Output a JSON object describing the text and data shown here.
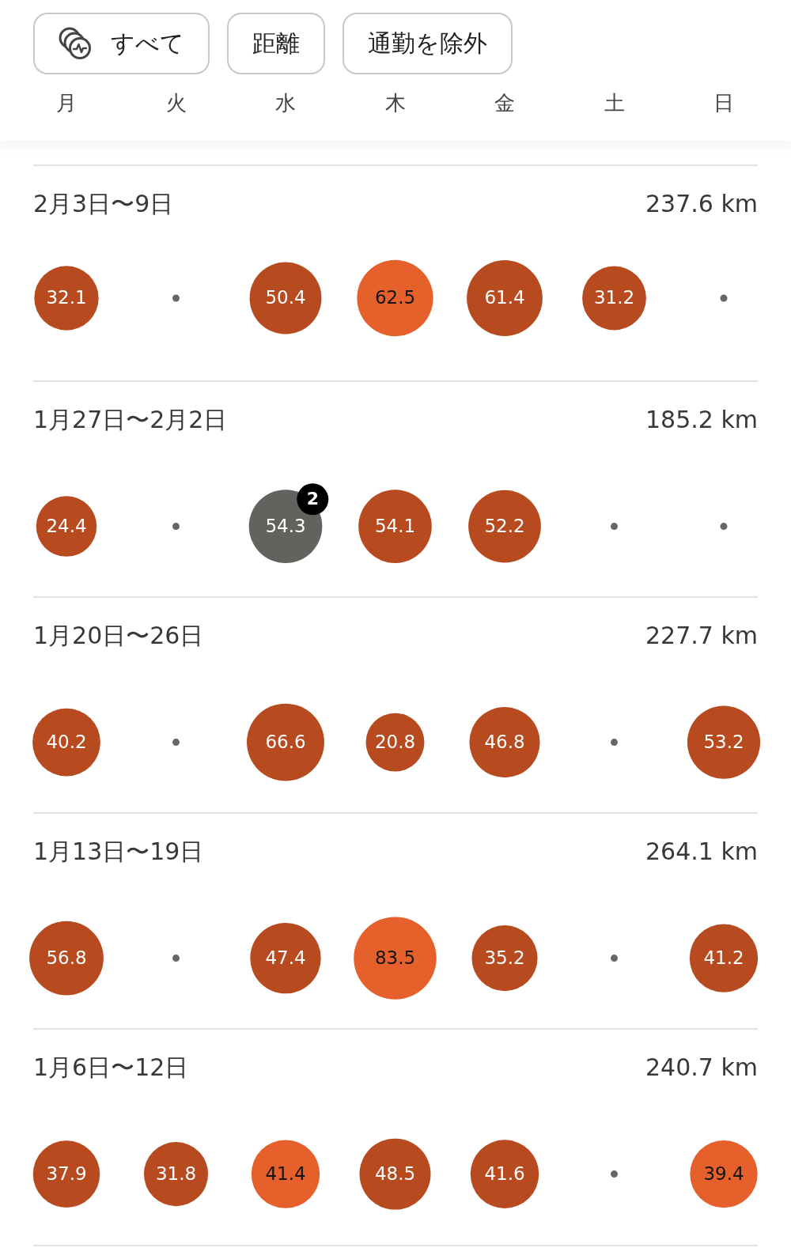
{
  "chart_data": [
    {
      "type": "other",
      "annotations": [
        "すべて",
        "距離",
        "通勤を除外"
      ]
    },
    {
      "type": "other",
      "title": "2月3日〜9日",
      "categories": [
        "月",
        "火",
        "水",
        "木",
        "金",
        "土",
        "日"
      ],
      "values": [
        32.1,
        null,
        50.4,
        62.5,
        61.4,
        31.2,
        null
      ],
      "colors": [
        "#b84a20",
        "#666666",
        "#b84a20",
        "#e5602a",
        "#b84a20",
        "#b84a20",
        "#666666"
      ],
      "data_labels": true,
      "annotations": [
        "237.6 km"
      ]
    },
    {
      "type": "other",
      "title": "1月27日〜2月2日",
      "values": [
        24.4,
        null,
        54.3,
        54.1,
        52.2,
        null,
        null
      ],
      "colors": [
        "#b84a20",
        "#666666",
        "#63625e",
        "#b84a20",
        "#b84a20",
        "#666666",
        "#666666"
      ],
      "data_labels": true,
      "annotations": [
        "185.2 km",
        {
          "text": "2",
          "x": "水"
        }
      ]
    },
    {
      "type": "other",
      "title": "1月20日〜26日",
      "values": [
        40.2,
        null,
        66.6,
        20.8,
        46.8,
        null,
        53.2
      ],
      "colors": [
        "#b84a20",
        "#666666",
        "#b84a20",
        "#b84a20",
        "#b84a20",
        "#666666",
        "#b84a20"
      ],
      "data_labels": true,
      "annotations": [
        "227.7 km"
      ]
    },
    {
      "type": "other",
      "title": "1月13日〜19日",
      "values": [
        56.8,
        null,
        47.4,
        83.5,
        35.2,
        null,
        41.2
      ],
      "colors": [
        "#b84a20",
        "#666666",
        "#b84a20",
        "#e5602a",
        "#b84a20",
        "#666666",
        "#b84a20"
      ],
      "data_labels": true,
      "annotations": [
        "264.1 km"
      ]
    },
    {
      "type": "other",
      "title": "1月6日〜12日",
      "values": [
        37.9,
        31.8,
        41.4,
        48.5,
        41.6,
        null,
        39.4
      ],
      "colors": [
        "#b84a20",
        "#b84a20",
        "#e5602a",
        "#b84a20",
        "#b84a20",
        "#666666",
        "#e5602a"
      ],
      "data_labels": true,
      "annotations": [
        "240.7 km"
      ]
    }
  ]
}
